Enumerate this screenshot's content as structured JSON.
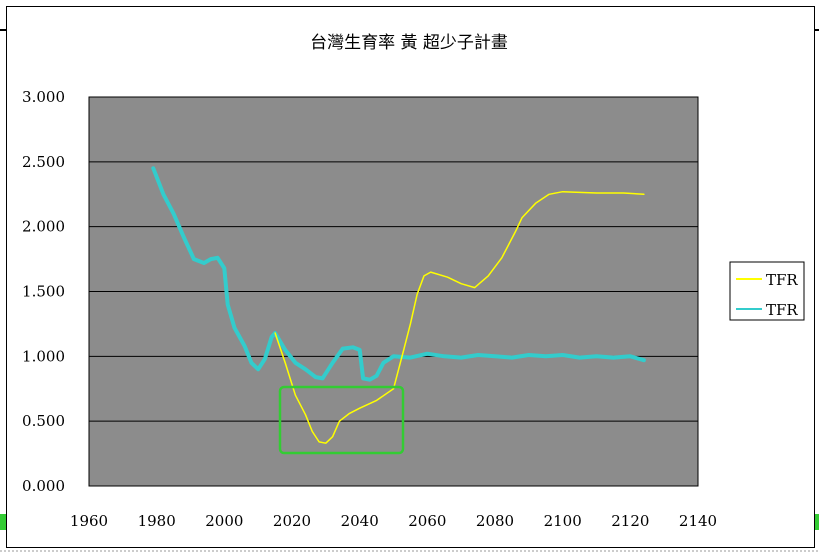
{
  "colors": {
    "plot_background": "#8c8c8c",
    "gridline": "#000000",
    "series_yellow": "#ffff00",
    "series_cyan": "#33cccc",
    "annotation_box": "#33cc33"
  },
  "chart_data": {
    "type": "line",
    "title": "台灣生育率 黃 超少子計畫",
    "xlabel": "",
    "ylabel": "",
    "xlim": [
      1960,
      2140
    ],
    "ylim": [
      0,
      3
    ],
    "x_ticks": [
      "1960",
      "1980",
      "2000",
      "2020",
      "2040",
      "2060",
      "2080",
      "2100",
      "2120",
      "2140"
    ],
    "y_ticks": [
      "0.000",
      "0.500",
      "1.000",
      "1.500",
      "2.000",
      "2.500",
      "3.000"
    ],
    "grid": "horizontal",
    "legend_position": "right",
    "series": [
      {
        "name": "TFR",
        "color": "#ffff00",
        "points": [
          [
            2015,
            1.18
          ],
          [
            2018,
            0.95
          ],
          [
            2021,
            0.7
          ],
          [
            2024,
            0.55
          ],
          [
            2026,
            0.42
          ],
          [
            2028,
            0.34
          ],
          [
            2030,
            0.33
          ],
          [
            2032,
            0.38
          ],
          [
            2034,
            0.5
          ],
          [
            2037,
            0.56
          ],
          [
            2040,
            0.6
          ],
          [
            2045,
            0.66
          ],
          [
            2050,
            0.75
          ],
          [
            2053,
            1.05
          ],
          [
            2055,
            1.25
          ],
          [
            2057,
            1.48
          ],
          [
            2059,
            1.62
          ],
          [
            2061,
            1.65
          ],
          [
            2066,
            1.61
          ],
          [
            2070,
            1.56
          ],
          [
            2074,
            1.53
          ],
          [
            2078,
            1.62
          ],
          [
            2082,
            1.76
          ],
          [
            2086,
            1.96
          ],
          [
            2088,
            2.07
          ],
          [
            2092,
            2.18
          ],
          [
            2096,
            2.25
          ],
          [
            2100,
            2.27
          ],
          [
            2110,
            2.26
          ],
          [
            2118,
            2.26
          ],
          [
            2124,
            2.25
          ]
        ]
      },
      {
        "name": "TFR",
        "color": "#33cccc",
        "points": [
          [
            1979,
            2.45
          ],
          [
            1982,
            2.25
          ],
          [
            1985,
            2.1
          ],
          [
            1988,
            1.92
          ],
          [
            1991,
            1.75
          ],
          [
            1994,
            1.72
          ],
          [
            1996,
            1.75
          ],
          [
            1998,
            1.76
          ],
          [
            2000,
            1.68
          ],
          [
            2001,
            1.4
          ],
          [
            2003,
            1.22
          ],
          [
            2006,
            1.08
          ],
          [
            2008,
            0.95
          ],
          [
            2010,
            0.9
          ],
          [
            2012,
            0.98
          ],
          [
            2014,
            1.15
          ],
          [
            2015,
            1.18
          ],
          [
            2018,
            1.05
          ],
          [
            2021,
            0.95
          ],
          [
            2024,
            0.9
          ],
          [
            2027,
            0.84
          ],
          [
            2029,
            0.83
          ],
          [
            2032,
            0.95
          ],
          [
            2035,
            1.06
          ],
          [
            2038,
            1.07
          ],
          [
            2040,
            1.05
          ],
          [
            2041,
            0.83
          ],
          [
            2043,
            0.82
          ],
          [
            2045,
            0.85
          ],
          [
            2047,
            0.95
          ],
          [
            2050,
            1.0
          ],
          [
            2055,
            0.99
          ],
          [
            2060,
            1.02
          ],
          [
            2065,
            1.0
          ],
          [
            2070,
            0.99
          ],
          [
            2075,
            1.01
          ],
          [
            2080,
            1.0
          ],
          [
            2085,
            0.99
          ],
          [
            2090,
            1.01
          ],
          [
            2095,
            1.0
          ],
          [
            2100,
            1.01
          ],
          [
            2105,
            0.99
          ],
          [
            2110,
            1.0
          ],
          [
            2115,
            0.99
          ],
          [
            2120,
            1.0
          ],
          [
            2124,
            0.97
          ]
        ]
      }
    ]
  }
}
